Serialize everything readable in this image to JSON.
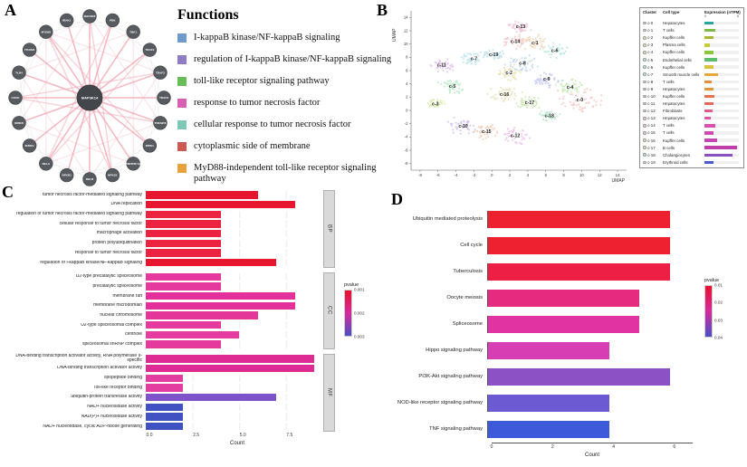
{
  "panel_labels": {
    "a": "A",
    "b": "B",
    "c": "C",
    "d": "D"
  },
  "panel_a": {
    "legend_title": "Functions",
    "functions": [
      {
        "label": "I-kappaB kinase/NF-kappaB signaling",
        "color": "#6e9bc9"
      },
      {
        "label": "regulation of I-kappaB kinase/NF-kappaB signaling",
        "color": "#8f7cc4"
      },
      {
        "label": "toll-like receptor signaling pathway",
        "color": "#69bd59"
      },
      {
        "label": "response to tumor necrosis factor",
        "color": "#d85fb2"
      },
      {
        "label": "cellular response to tumor necrosis factor",
        "color": "#7cc7b6"
      },
      {
        "label": "cytoplasmic side of membrane",
        "color": "#c95b53"
      },
      {
        "label": "MyD88-independent toll-like receptor signaling pathway",
        "color": "#e7a23e"
      }
    ],
    "network": {
      "center": "MAP3K14",
      "nodes": [
        "MAP3K8",
        "PBK",
        "TBK1",
        "TRAF2",
        "TRAF3",
        "TRAF6",
        "TNFAIP3",
        "RIPK1",
        "TNFRSF1A",
        "NFKB2",
        "RELB",
        "NFKB1",
        "RELA",
        "IKBKG",
        "IKBKB",
        "CHUK",
        "TLR4",
        "TICAM1",
        "MYD88",
        "IRAK1"
      ],
      "node_color": "#575b60",
      "edge_colors": {
        "primary": "#f2a9b6",
        "secondary": "#d8d8d8"
      }
    }
  },
  "chart_data": [
    {
      "id": "umap",
      "type": "scatter",
      "xlabel": "UMAP",
      "ylabel": "UMAP",
      "xlim": [
        -9,
        15
      ],
      "ylim": [
        -9,
        15
      ],
      "x_ticks": [
        -8,
        -6,
        -4,
        -2,
        0,
        2,
        4,
        6,
        8,
        10,
        12,
        14
      ],
      "y_ticks": [
        -8,
        -6,
        -4,
        -2,
        0,
        2,
        4,
        6,
        8,
        10,
        12,
        14
      ],
      "legend_headers": [
        "Cluster",
        "Cell type",
        "Expression (nTPM)"
      ],
      "expression_scale": [
        0,
        8
      ],
      "clusters": [
        {
          "id": "c-0",
          "cell_type": "Hepatocytes",
          "x": 9.8,
          "y": 1.6,
          "spread": 2.3,
          "color": "#f5c8c3",
          "expression": 2.0,
          "bar_color": "#2aa79b"
        },
        {
          "id": "c-1",
          "cell_type": "T cells",
          "x": 4.8,
          "y": 10.2,
          "spread": 1.5,
          "color": "#f3d6b9",
          "expression": 2.6,
          "bar_color": "#7cbb45"
        },
        {
          "id": "c-2",
          "cell_type": "Kupffer cells",
          "x": 1.9,
          "y": 5.7,
          "spread": 1.4,
          "color": "#ece4b2",
          "expression": 2.0,
          "bar_color": "#a9b832"
        },
        {
          "id": "c-3",
          "cell_type": "Plasma cells",
          "x": -6.3,
          "y": 1.0,
          "spread": 1.0,
          "color": "#dcecb4",
          "expression": 1.2,
          "bar_color": "#c6cc39"
        },
        {
          "id": "c-4",
          "cell_type": "Kupffer cells",
          "x": 8.7,
          "y": 3.5,
          "spread": 1.4,
          "color": "#c9ecb8",
          "expression": 2.2,
          "bar_color": "#8cc63f"
        },
        {
          "id": "c-5",
          "cell_type": "Endothelial cells",
          "x": -4.4,
          "y": 3.6,
          "spread": 1.4,
          "color": "#bdecca",
          "expression": 3.0,
          "bar_color": "#5dbd6d"
        },
        {
          "id": "c-6",
          "cell_type": "Kupffer cells",
          "x": 7.0,
          "y": 9.0,
          "spread": 1.3,
          "color": "#bcebdc",
          "expression": 2.0,
          "bar_color": "#d9c23f"
        },
        {
          "id": "c-7",
          "cell_type": "Smooth muscle cells",
          "x": -2.0,
          "y": 7.8,
          "spread": 1.3,
          "color": "#bee6ec",
          "expression": 3.2,
          "bar_color": "#e9a63a"
        },
        {
          "id": "c-8",
          "cell_type": "T cells",
          "x": 3.4,
          "y": 7.1,
          "spread": 1.5,
          "color": "#c2d8f0",
          "expression": 1.6,
          "bar_color": "#ea8c3a"
        },
        {
          "id": "c-9",
          "cell_type": "Hepatocytes",
          "x": 6.1,
          "y": 4.7,
          "spread": 1.5,
          "color": "#c7ccf2",
          "expression": 2.0,
          "bar_color": "#e2973f"
        },
        {
          "id": "c-10",
          "cell_type": "Kupffer cells",
          "x": -3.2,
          "y": -2.4,
          "spread": 1.6,
          "color": "#d3c5f0",
          "expression": 2.4,
          "bar_color": "#e5724c"
        },
        {
          "id": "c-11",
          "cell_type": "Hepatocytes",
          "x": -5.6,
          "y": 6.8,
          "spread": 1.3,
          "color": "#e2c4f0",
          "expression": 2.0,
          "bar_color": "#e2685e"
        },
        {
          "id": "c-12",
          "cell_type": "Fibroblasts",
          "x": 2.6,
          "y": -3.8,
          "spread": 1.5,
          "color": "#eec3ea",
          "expression": 1.8,
          "bar_color": "#e05a86"
        },
        {
          "id": "c-13",
          "cell_type": "Hepatocytes",
          "x": 3.2,
          "y": 12.6,
          "spread": 1.1,
          "color": "#f2c3da",
          "expression": 1.4,
          "bar_color": "#e056a3"
        },
        {
          "id": "c-14",
          "cell_type": "T cells",
          "x": 2.6,
          "y": 10.4,
          "spread": 1.2,
          "color": "#f5c9cd",
          "expression": 2.6,
          "bar_color": "#d84fac"
        },
        {
          "id": "c-15",
          "cell_type": "T cells",
          "x": -0.6,
          "y": -3.2,
          "spread": 1.5,
          "color": "#f0d2bf",
          "expression": 2.0,
          "bar_color": "#cf4bb1"
        },
        {
          "id": "c-16",
          "cell_type": "Kupffer cells",
          "x": 1.4,
          "y": 2.4,
          "spread": 1.6,
          "color": "#e7e1b7",
          "expression": 3.0,
          "bar_color": "#c247b0"
        },
        {
          "id": "c-17",
          "cell_type": "B cells",
          "x": 4.2,
          "y": 1.2,
          "spread": 1.3,
          "color": "#cfe9b8",
          "expression": 7.5,
          "bar_color": "#c13da7"
        },
        {
          "id": "c-18",
          "cell_type": "Cholangiocytes",
          "x": 6.4,
          "y": -0.8,
          "spread": 1.2,
          "color": "#bde8d3",
          "expression": 6.5,
          "bar_color": "#8a4fc1"
        },
        {
          "id": "c-19",
          "cell_type": "Erythroid cells",
          "x": 0.2,
          "y": 8.4,
          "spread": 1.0,
          "color": "#c3e2f0",
          "expression": 2.0,
          "bar_color": "#4b5aca"
        }
      ]
    },
    {
      "id": "go_enrichment",
      "type": "bar",
      "xlabel": "Count",
      "xlim": [
        0,
        9.4
      ],
      "x_ticks": [
        "0.0",
        "2.5",
        "5.0",
        "7.5"
      ],
      "legend": {
        "title": "pvalue",
        "ticks": [
          "0.001",
          "0.002",
          "0.003"
        ],
        "gradient": [
          "#e8112d",
          "#d62a9d",
          "#4a50c4"
        ]
      },
      "facets": [
        {
          "name": "BP",
          "rows": [
            {
              "label": "tumor necrosis factor-mediated signaling pathway",
              "value": 6,
              "color": "#e8152f"
            },
            {
              "label": "DNA replication",
              "value": 8,
              "color": "#e8152f"
            },
            {
              "label": "regulation of tumor necrosis factor-mediated signaling pathway",
              "value": 4,
              "color": "#eb2340"
            },
            {
              "label": "cellular response to tumor necrosis factor",
              "value": 4,
              "color": "#eb2340"
            },
            {
              "label": "macrophage activation",
              "value": 4,
              "color": "#eb2340"
            },
            {
              "label": "protein polyubiquitination",
              "value": 4,
              "color": "#eb2340"
            },
            {
              "label": "response to tumor necrosis factor",
              "value": 4,
              "color": "#eb2340"
            },
            {
              "label": "regulation of I-kappaB kinase/NF-kappaB signaling",
              "value": 7,
              "color": "#e8152f"
            }
          ]
        },
        {
          "name": "CC",
          "rows": [
            {
              "label": "U2-type precatalytic spliceosome",
              "value": 4,
              "color": "#e5399e"
            },
            {
              "label": "precatalytic spliceosome",
              "value": 4,
              "color": "#e5399e"
            },
            {
              "label": "membrane raft",
              "value": 8,
              "color": "#e3309a"
            },
            {
              "label": "membrane microdomain",
              "value": 8,
              "color": "#e3309a"
            },
            {
              "label": "nuclear chromosome",
              "value": 6,
              "color": "#e43598"
            },
            {
              "label": "U2-type spliceosomal complex",
              "value": 4,
              "color": "#e5399e"
            },
            {
              "label": "centriole",
              "value": 5,
              "color": "#e43d9f"
            },
            {
              "label": "spliceosomal snRNP complex",
              "value": 4,
              "color": "#e5399e"
            }
          ]
        },
        {
          "name": "MF",
          "rows": [
            {
              "label": "DNA-binding transcription activator activity, RNA polymerase II-specific",
              "value": 9,
              "color": "#de2a93"
            },
            {
              "label": "DNA-binding transcription activator activity",
              "value": 9,
              "color": "#de2a93"
            },
            {
              "label": "lipopeptide binding",
              "value": 2,
              "color": "#e43da0"
            },
            {
              "label": "Toll-like receptor binding",
              "value": 2,
              "color": "#e43da0"
            },
            {
              "label": "ubiquitin-protein transferase activity",
              "value": 7,
              "color": "#7e52c8"
            },
            {
              "label": "NAD+ nucleosidase activity",
              "value": 2,
              "color": "#4052c2"
            },
            {
              "label": "NAD(P)+ nucleosidase activity",
              "value": 2,
              "color": "#4052c2"
            },
            {
              "label": "NAD+ nucleotidase, cyclic ADP-ribose generating",
              "value": 2,
              "color": "#4052c2"
            }
          ]
        }
      ]
    },
    {
      "id": "kegg",
      "type": "bar",
      "xlabel": "Count",
      "xlim": [
        0,
        6.6
      ],
      "x_ticks": [
        "0",
        "2",
        "4",
        "6"
      ],
      "legend": {
        "title": "pvalue",
        "ticks": [
          "0.01",
          "0.02",
          "0.03",
          "0.04"
        ],
        "gradient": [
          "#e8112d",
          "#d62a9d",
          "#4a50c4"
        ]
      },
      "rows": [
        {
          "label": "Ubiquitin mediated proteolysis",
          "value": 6,
          "color": "#ee2131"
        },
        {
          "label": "Cell cycle",
          "value": 6,
          "color": "#ee2131"
        },
        {
          "label": "Tuberculosis",
          "value": 6,
          "color": "#ed1f45"
        },
        {
          "label": "Oocyte meiosis",
          "value": 5,
          "color": "#e62a80"
        },
        {
          "label": "Spliceosome",
          "value": 5,
          "color": "#e133a2"
        },
        {
          "label": "Hippo signaling pathway",
          "value": 4,
          "color": "#d83eb4"
        },
        {
          "label": "PI3K-Akt signaling pathway",
          "value": 6,
          "color": "#8c52c5"
        },
        {
          "label": "NOD-like receptor signaling pathway",
          "value": 4,
          "color": "#6b5ad2"
        },
        {
          "label": "TNF signaling pathway",
          "value": 4,
          "color": "#3c5ad9"
        }
      ]
    }
  ]
}
